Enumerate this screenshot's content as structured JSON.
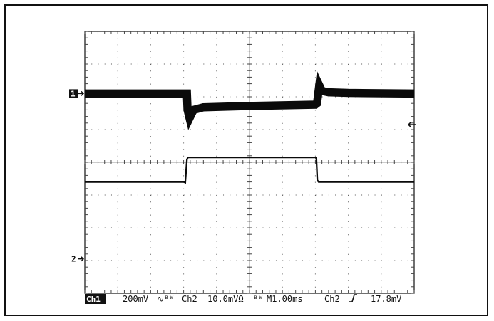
{
  "chart_data": {
    "type": "line",
    "instrument": "oscilloscope",
    "grid": {
      "divisions_x": 10,
      "divisions_y": 8,
      "minor_per_division": 5,
      "style": "dotted"
    },
    "time_scale": "M1.00ms",
    "trigger": {
      "source": "Ch2",
      "slope": "rising",
      "level_text": "17.8mV",
      "level_div": 1.15
    },
    "x_div_range": [
      0,
      10
    ],
    "y_div_range": [
      -4,
      4
    ],
    "series": [
      {
        "channel_tag": "Ch1",
        "scale_text": "200mV",
        "coupling_glyph": "∿ᴮᵂ",
        "marker_label": "1",
        "marker_div": 2.1,
        "trace_thickness_div": 0.25,
        "points": [
          [
            0.0,
            2.1
          ],
          [
            3.1,
            2.1
          ],
          [
            3.12,
            1.6
          ],
          [
            3.18,
            1.35
          ],
          [
            3.3,
            1.6
          ],
          [
            3.6,
            1.68
          ],
          [
            5.0,
            1.72
          ],
          [
            7.0,
            1.76
          ],
          [
            7.05,
            1.8
          ],
          [
            7.12,
            2.35
          ],
          [
            7.2,
            2.18
          ],
          [
            7.4,
            2.14
          ],
          [
            8.0,
            2.12
          ],
          [
            10.0,
            2.1
          ]
        ]
      },
      {
        "channel_tag": "Ch2",
        "scale_text": "10.0mVΩ",
        "coupling_glyph": "ᴮᵂ",
        "marker_label": "2",
        "marker_div": -2.95,
        "trace_thickness_div": 0.05,
        "points": [
          [
            0.0,
            -0.6
          ],
          [
            3.0,
            -0.6
          ],
          [
            3.05,
            -0.62
          ],
          [
            3.1,
            0.08
          ],
          [
            3.13,
            0.15
          ],
          [
            4.0,
            0.15
          ],
          [
            6.0,
            0.15
          ],
          [
            7.0,
            0.15
          ],
          [
            7.03,
            0.12
          ],
          [
            7.06,
            -0.55
          ],
          [
            7.1,
            -0.6
          ],
          [
            10.0,
            -0.6
          ]
        ]
      }
    ]
  }
}
